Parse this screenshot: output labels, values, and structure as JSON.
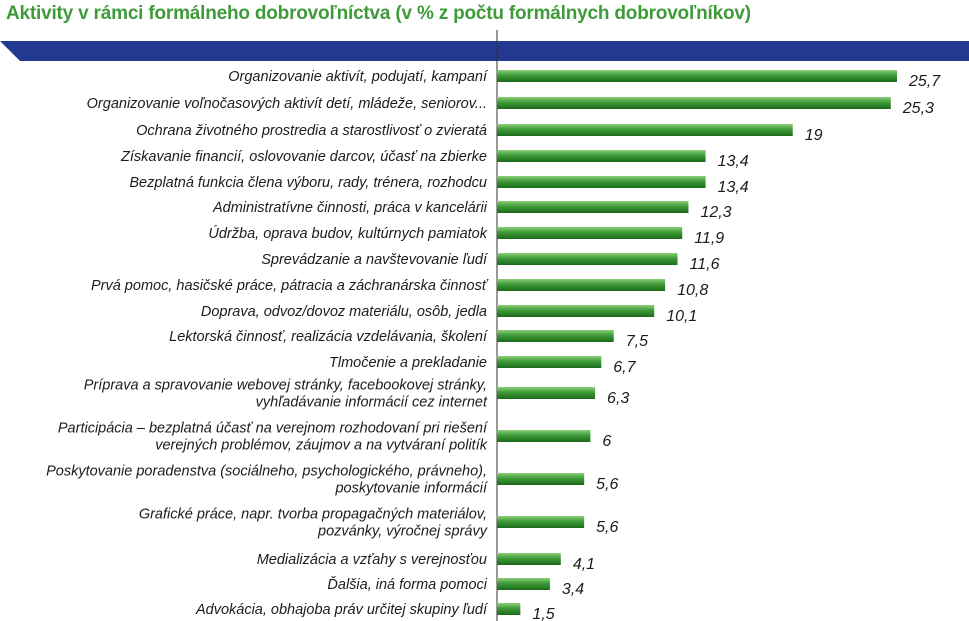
{
  "chart_data": {
    "type": "bar",
    "orientation": "horizontal",
    "title": "Aktivity v rámci formálneho dobrovoľníctva (v % z počtu formálnych dobrovoľníkov)",
    "xlabel": "",
    "ylabel": "",
    "xlim": [
      0,
      27
    ],
    "grid": false,
    "legend": "none",
    "categories": [
      [
        "Organizovanie aktivít, podujatí, kampaní"
      ],
      [
        "Organizovanie voľnočasových aktivít detí, mládeže, seniorov..."
      ],
      [
        "Ochrana životného prostredia a starostlivosť o zvieratá"
      ],
      [
        "Získavanie financií, oslovovanie darcov, účasť na zbierke"
      ],
      [
        "Bezplatná funkcia člena výboru, rady, trénera, rozhodcu"
      ],
      [
        "Administratívne činnosti, práca v kancelárii"
      ],
      [
        "Údržba, oprava budov, kultúrnych pamiatok"
      ],
      [
        "Sprevádzanie a navštevovanie ľudí"
      ],
      [
        "Prvá pomoc, hasičské práce, pátracia a záchranárska činnosť"
      ],
      [
        "Doprava, odvoz/dovoz materiálu, osôb, jedla"
      ],
      [
        "Lektorská činnosť, realizácia vzdelávania, školení"
      ],
      [
        "Tlmočenie a prekladanie"
      ],
      [
        "Príprava a spravovanie webovej stránky, facebookovej stránky,",
        "vyhľadávanie informácií cez internet"
      ],
      [
        "Participácia – bezplatná účasť na verejnom rozhodovaní pri riešení",
        "verejných problémov, záujmov a na vytváraní politík"
      ],
      [
        "Poskytovanie poradenstva (sociálneho, psychologického, právneho),",
        "poskytovanie informácií"
      ],
      [
        "Grafické práce, napr. tvorba propagačných materiálov,",
        "pozvánky, výročnej správy"
      ],
      [
        "Medializácia a vzťahy s verejnosťou"
      ],
      [
        "Ďalšia, iná forma pomoci"
      ],
      [
        "Advokácia, obhajoba práv určitej skupiny ľudí"
      ]
    ],
    "values": [
      25.7,
      25.3,
      19,
      13.4,
      13.4,
      12.3,
      11.9,
      11.6,
      10.8,
      10.1,
      7.5,
      6.7,
      6.3,
      6,
      5.6,
      5.6,
      4.1,
      3.4,
      1.5
    ],
    "value_labels": [
      "25,7",
      "25,3",
      "19",
      "13,4",
      "13,4",
      "12,3",
      "11,9",
      "11,6",
      "10,8",
      "10,1",
      "7,5",
      "6,7",
      "6,3",
      "6",
      "5,6",
      "5,6",
      "4,1",
      "3,4",
      "1,5"
    ]
  },
  "colors": {
    "title": "#3f9b3a",
    "header_bar": "#22398f",
    "bar_top": "#8cd07a",
    "bar_mid": "#3d9a37",
    "bar_bottom": "#1d6a1c",
    "axis": "#333333",
    "text": "#1c1c1c"
  }
}
